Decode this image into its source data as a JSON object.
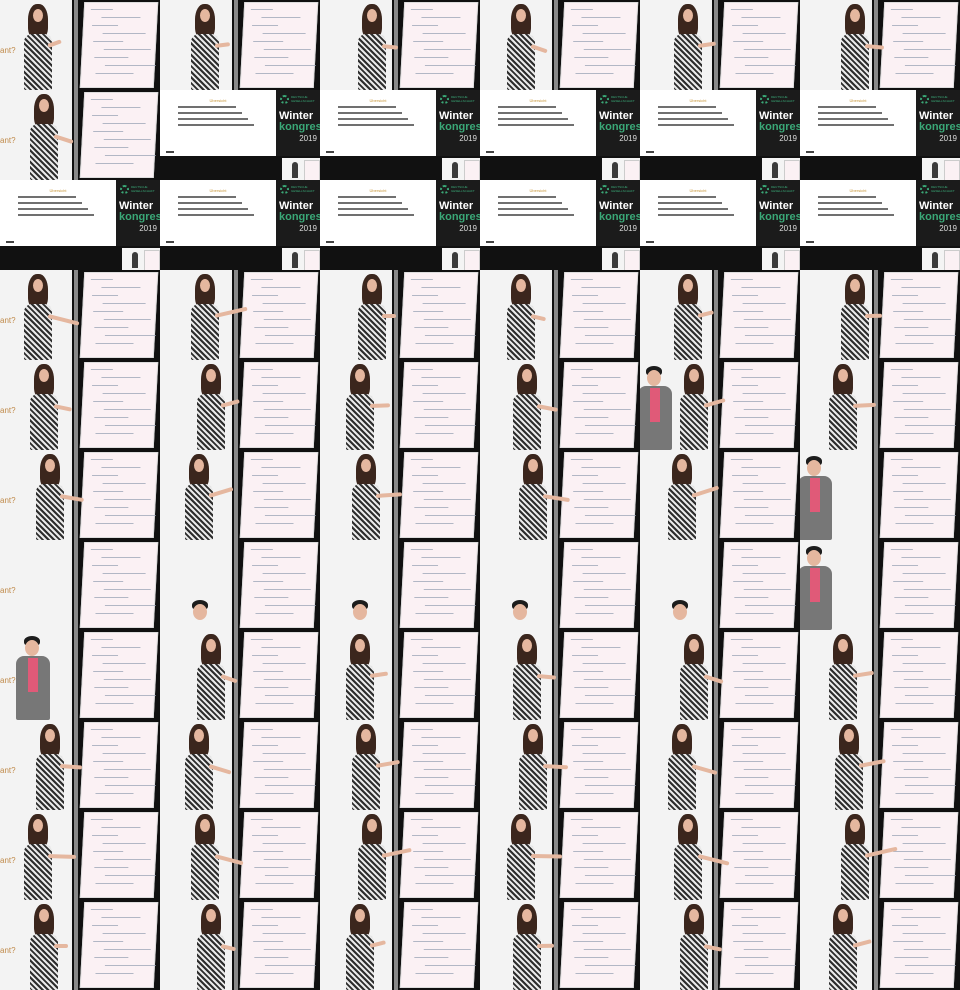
{
  "grid": {
    "columns": 6,
    "rows": 11
  },
  "frame_text": {
    "edge_fragment": "ant?",
    "slide_title": "Übersicht",
    "slide_brand_org": "DEUTSCHE GESELLSCHAFT",
    "slide_brand_word1": "Winter",
    "slide_brand_word2": "kongress",
    "slide_brand_year": "2019"
  },
  "frames": [
    "stage",
    "stage",
    "stage",
    "stage",
    "stage",
    "stage",
    "stage",
    "slide",
    "slide",
    "slide",
    "slide",
    "slide",
    "slide",
    "slide",
    "slide",
    "slide",
    "slide",
    "slide",
    "stage",
    "stage",
    "stage",
    "stage",
    "stage",
    "stage",
    "stage",
    "stage",
    "stage",
    "stage",
    "stage",
    "stage",
    "stage",
    "stage",
    "stage",
    "stage",
    "stage",
    "stage",
    "stage",
    "stage",
    "stage",
    "stage",
    "stage",
    "stage",
    "stage",
    "stage",
    "stage",
    "stage",
    "stage",
    "stage",
    "stage",
    "stage",
    "stage",
    "stage",
    "stage",
    "stage",
    "stage",
    "stage",
    "stage",
    "stage",
    "stage",
    "stage",
    "stage",
    "stage",
    "stage",
    "stage",
    "stage",
    "stage"
  ],
  "presenters": [
    "woman",
    "woman",
    "woman",
    "woman",
    "woman",
    "woman",
    "woman",
    "woman",
    "woman",
    "woman",
    "woman",
    "woman",
    "none",
    "none",
    "none",
    "none",
    "none",
    "none",
    "woman",
    "woman",
    "woman",
    "woman",
    "woman",
    "woman",
    "woman",
    "woman",
    "woman",
    "woman",
    "both",
    "woman",
    "woman",
    "woman",
    "woman",
    "woman",
    "woman",
    "man",
    "none",
    "man-head",
    "man-head",
    "man-head",
    "man-head",
    "man",
    "man",
    "woman",
    "woman",
    "woman",
    "woman",
    "woman",
    "woman",
    "woman",
    "woman",
    "woman",
    "woman",
    "woman",
    "woman",
    "woman",
    "woman",
    "woman",
    "woman",
    "woman",
    "woman",
    "woman",
    "woman",
    "woman",
    "woman",
    "woman"
  ],
  "colors": {
    "background": "#000000",
    "flipchart": "#fbf1f4",
    "brand_green": "#3aa877",
    "accent_gold": "#c7973b"
  }
}
